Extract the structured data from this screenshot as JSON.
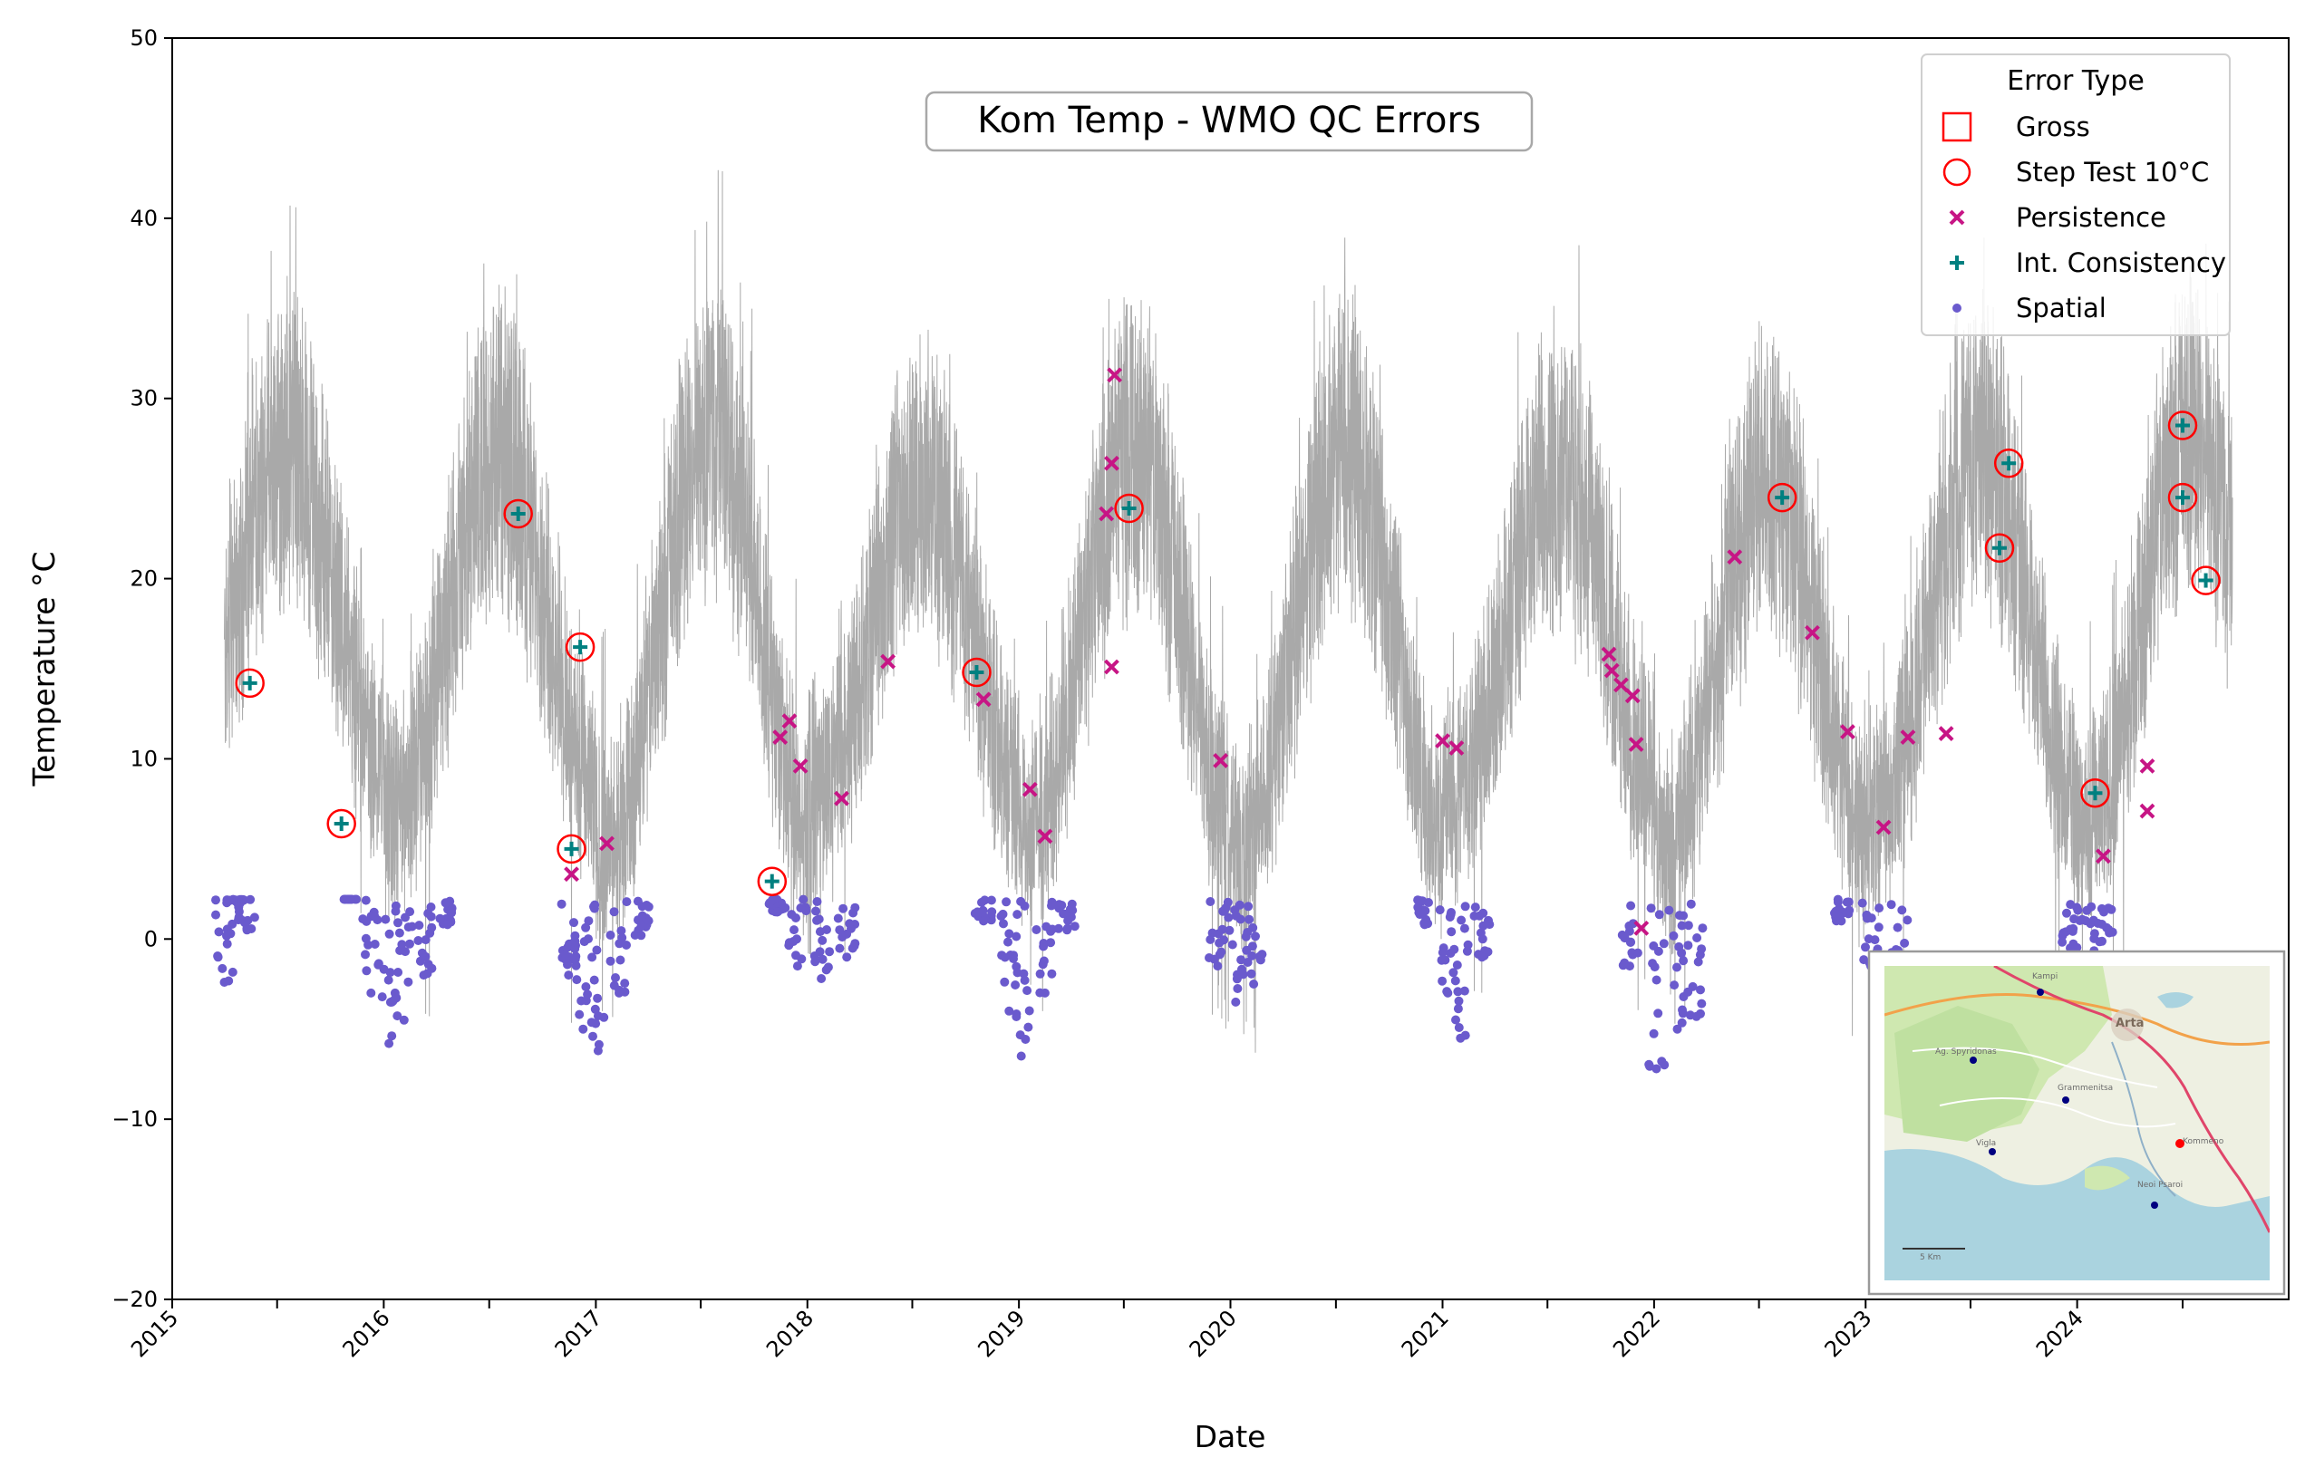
{
  "chart_data": {
    "type": "line",
    "title": "Kom Temp - WMO QC Errors",
    "xlabel": "Date",
    "ylabel": "Temperature °C",
    "ylim": [
      -20,
      50
    ],
    "yticks": [
      -20,
      -10,
      0,
      10,
      20,
      30,
      40,
      50
    ],
    "ytick_labels": [
      "−20",
      "−10",
      "0",
      "10",
      "20",
      "30",
      "40",
      "50"
    ],
    "xlim": [
      "2015-01-01",
      "2024-12-31"
    ],
    "xtick_labels": [
      "2015",
      "2016",
      "2017",
      "2018",
      "2019",
      "2020",
      "2021",
      "2022",
      "2023",
      "2024"
    ],
    "grid": false,
    "legend": {
      "title": "Error Type",
      "placement": "top-right",
      "entries": [
        "Gross",
        "Step Test 10°C",
        "Persistence",
        "Int. Consistency",
        "Spatial"
      ]
    },
    "colors": {
      "temperature_line": "#a9a9a9",
      "gross": "#ff0000",
      "step_test": "#ff0000",
      "persistence": "#c71585",
      "int_consistency": "#008080",
      "spatial": "#6a5acd"
    },
    "temperature_series": {
      "name": "",
      "start": "2015-04-01",
      "end": "2024-09-25",
      "yearly_mean_min": [
        9,
        7,
        5,
        8,
        6,
        5,
        8,
        5,
        7,
        6
      ],
      "yearly_mean_max": [
        27,
        27,
        28,
        25,
        27,
        27,
        26,
        25,
        27,
        28
      ],
      "abs_peaks": [
        41,
        37,
        43,
        36,
        41,
        38,
        40,
        34,
        38,
        42
      ],
      "abs_troughs": [
        2,
        -5,
        -5,
        -1,
        -5,
        -7,
        -4,
        -6,
        -3,
        -3
      ]
    },
    "series": [
      {
        "name": "Step Test 10°C",
        "points": [
          [
            "2015-05-15",
            14.2
          ],
          [
            "2015-10-20",
            6.4
          ],
          [
            "2016-08-20",
            23.6
          ],
          [
            "2016-11-20",
            5.0
          ],
          [
            "2016-12-05",
            16.2
          ],
          [
            "2017-11-01",
            3.2
          ],
          [
            "2018-10-20",
            14.8
          ],
          [
            "2019-07-10",
            23.9
          ],
          [
            "2022-08-10",
            24.5
          ],
          [
            "2023-08-20",
            21.7
          ],
          [
            "2023-09-05",
            26.4
          ],
          [
            "2024-02-01",
            8.1
          ],
          [
            "2024-07-01",
            28.5
          ],
          [
            "2024-07-01",
            24.5
          ],
          [
            "2024-08-10",
            19.9
          ]
        ]
      },
      {
        "name": "Int. Consistency",
        "points": [
          [
            "2015-05-15",
            14.2
          ],
          [
            "2015-10-20",
            6.4
          ],
          [
            "2016-08-20",
            23.6
          ],
          [
            "2016-11-20",
            5.0
          ],
          [
            "2016-12-05",
            16.2
          ],
          [
            "2017-11-01",
            3.2
          ],
          [
            "2018-10-20",
            14.8
          ],
          [
            "2019-07-10",
            23.9
          ],
          [
            "2022-08-10",
            24.5
          ],
          [
            "2023-08-20",
            21.7
          ],
          [
            "2023-09-05",
            26.4
          ],
          [
            "2024-02-01",
            8.1
          ],
          [
            "2024-07-01",
            28.5
          ],
          [
            "2024-07-01",
            24.5
          ],
          [
            "2024-08-10",
            19.9
          ]
        ]
      },
      {
        "name": "Persistence",
        "points": [
          [
            "2016-11-20",
            3.6
          ],
          [
            "2017-01-20",
            5.3
          ],
          [
            "2017-11-15",
            11.2
          ],
          [
            "2017-12-01",
            12.1
          ],
          [
            "2017-12-20",
            9.6
          ],
          [
            "2018-03-01",
            7.8
          ],
          [
            "2018-05-20",
            15.4
          ],
          [
            "2018-11-01",
            13.3
          ],
          [
            "2019-01-20",
            8.3
          ],
          [
            "2019-02-15",
            5.7
          ],
          [
            "2019-06-01",
            23.6
          ],
          [
            "2019-06-10",
            26.4
          ],
          [
            "2019-06-10",
            15.1
          ],
          [
            "2019-06-15",
            31.3
          ],
          [
            "2019-12-15",
            9.9
          ],
          [
            "2021-01-01",
            11.0
          ],
          [
            "2021-01-25",
            10.6
          ],
          [
            "2021-10-15",
            15.8
          ],
          [
            "2021-10-20",
            14.9
          ],
          [
            "2021-11-05",
            14.1
          ],
          [
            "2021-11-25",
            13.5
          ],
          [
            "2021-12-01",
            10.8
          ],
          [
            "2021-12-10",
            0.6
          ],
          [
            "2022-05-20",
            21.2
          ],
          [
            "2022-10-01",
            17.0
          ],
          [
            "2022-12-01",
            11.5
          ],
          [
            "2023-02-01",
            6.2
          ],
          [
            "2023-03-15",
            11.2
          ],
          [
            "2023-05-20",
            11.4
          ],
          [
            "2024-02-15",
            4.6
          ],
          [
            "2024-05-01",
            9.6
          ],
          [
            "2024-05-01",
            7.1
          ]
        ]
      },
      {
        "name": "Spatial",
        "points": [
          [
            "2015-04-01",
            -2.4
          ],
          [
            "2015-04-20",
            2.1
          ],
          [
            "2015-05-10",
            0.5
          ],
          [
            "2015-11-05",
            2.2
          ],
          [
            "2015-12-10",
            -3.0
          ],
          [
            "2016-01-10",
            -5.8
          ],
          [
            "2016-02-05",
            -4.5
          ],
          [
            "2016-03-10",
            -2.0
          ],
          [
            "2016-04-20",
            0.8
          ],
          [
            "2016-11-15",
            -2.0
          ],
          [
            "2016-12-10",
            -5.0
          ],
          [
            "2017-01-05",
            -6.2
          ],
          [
            "2017-02-10",
            -3.0
          ],
          [
            "2017-03-20",
            0.2
          ],
          [
            "2017-11-10",
            1.5
          ],
          [
            "2017-12-15",
            -1.5
          ],
          [
            "2018-01-25",
            -2.2
          ],
          [
            "2018-03-10",
            -1.0
          ],
          [
            "2018-11-01",
            1.0
          ],
          [
            "2018-12-15",
            -4.0
          ],
          [
            "2019-01-05",
            -6.5
          ],
          [
            "2019-02-15",
            -3.0
          ],
          [
            "2019-03-25",
            0.5
          ],
          [
            "2019-12-10",
            -1.5
          ],
          [
            "2020-01-10",
            -3.5
          ],
          [
            "2020-02-10",
            -2.5
          ],
          [
            "2020-12-01",
            0.8
          ],
          [
            "2021-01-10",
            -3.0
          ],
          [
            "2021-02-01",
            -5.5
          ],
          [
            "2021-03-10",
            -1.0
          ],
          [
            "2021-11-20",
            -1.5
          ],
          [
            "2022-01-05",
            -7.2
          ],
          [
            "2022-02-10",
            -5.0
          ],
          [
            "2022-03-15",
            -4.3
          ],
          [
            "2022-11-20",
            1.0
          ],
          [
            "2023-01-10",
            -1.5
          ],
          [
            "2023-03-01",
            -1.8
          ],
          [
            "2023-12-20",
            -0.5
          ],
          [
            "2024-01-20",
            -2.0
          ],
          [
            "2024-02-20",
            -1.0
          ]
        ]
      }
    ]
  },
  "inset_map": {
    "labels": [
      "Kampi",
      "Arta",
      "Ag. Spyridonas",
      "Grammenitsa",
      "Vigla",
      "Kommeno",
      "Neoi Psaroi"
    ],
    "scale_label": "5 Km"
  }
}
